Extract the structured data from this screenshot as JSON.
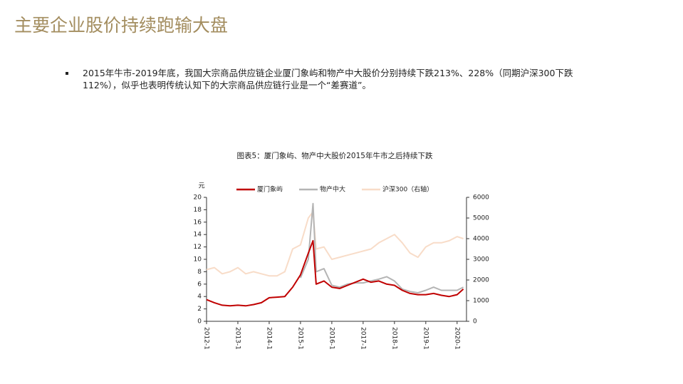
{
  "header": {
    "title": "主要企业股价持续跑输大盘"
  },
  "bullet": "2015年牛市-2019年底，我国大宗商品供应链企业厦门象屿和物产中大股价分别持续下跌213%、228%（同期沪深300下跌112%），似乎也表明传统认知下的大宗商品供应链行业是一个“差赛道”。",
  "chart_data": {
    "type": "line",
    "title": "图表5：厦门象屿、物产中大股价2015年牛市之后持续下跌",
    "y_label": "元",
    "x": [
      2012,
      2012.25,
      2012.5,
      2012.75,
      2013,
      2013.25,
      2013.5,
      2013.75,
      2014,
      2014.25,
      2014.5,
      2014.75,
      2015,
      2015.25,
      2015.4,
      2015.5,
      2015.75,
      2016,
      2016.25,
      2016.5,
      2016.75,
      2017,
      2017.25,
      2017.5,
      2017.75,
      2018,
      2018.25,
      2018.5,
      2018.75,
      2019,
      2019.25,
      2019.5,
      2019.75,
      2020,
      2020.2
    ],
    "series": [
      {
        "name": "厦门象屿",
        "color": "#c00000",
        "values": [
          3.5,
          3.0,
          2.6,
          2.5,
          2.6,
          2.5,
          2.7,
          3.0,
          3.8,
          3.9,
          4.0,
          5.5,
          7.5,
          11.0,
          13.0,
          6.0,
          6.5,
          5.5,
          5.3,
          5.8,
          6.3,
          6.8,
          6.3,
          6.5,
          6.0,
          5.8,
          5.0,
          4.5,
          4.3,
          4.3,
          4.5,
          4.2,
          4.0,
          4.3,
          5.2
        ]
      },
      {
        "name": "物产中大",
        "color": "#b4b4b4",
        "values": [
          null,
          null,
          null,
          null,
          null,
          null,
          null,
          null,
          null,
          null,
          null,
          null,
          7.0,
          10.0,
          19.0,
          8.0,
          8.5,
          5.8,
          5.5,
          6.0,
          6.2,
          6.2,
          6.5,
          6.8,
          7.2,
          6.5,
          5.2,
          4.8,
          4.6,
          5.0,
          5.5,
          5.0,
          5.0,
          5.0,
          5.5
        ]
      },
      {
        "name": "沪深300（右轴）",
        "color": "#f8dcc8",
        "axis": "y2",
        "values": [
          2500,
          2600,
          2300,
          2400,
          2600,
          2300,
          2400,
          2300,
          2200,
          2200,
          2400,
          3500,
          3700,
          5000,
          5300,
          3500,
          3600,
          3000,
          3100,
          3200,
          3300,
          3400,
          3500,
          3800,
          4000,
          4200,
          3800,
          3300,
          3100,
          3600,
          3800,
          3800,
          3900,
          4100,
          4000
        ]
      }
    ],
    "xlim": [
      2012,
      2020.3
    ],
    "xticks": [
      {
        "value": 2012,
        "label": "2012-1"
      },
      {
        "value": 2013,
        "label": "2013-1"
      },
      {
        "value": 2014,
        "label": "2014-1"
      },
      {
        "value": 2015,
        "label": "2015-1"
      },
      {
        "value": 2016,
        "label": "2016-1"
      },
      {
        "value": 2017,
        "label": "2017-1"
      },
      {
        "value": 2018,
        "label": "2018-1"
      },
      {
        "value": 2019,
        "label": "2019-1"
      },
      {
        "value": 2020,
        "label": "2020-1"
      }
    ],
    "ylim": [
      0,
      20
    ],
    "yticks": [
      0,
      2,
      4,
      6,
      8,
      10,
      12,
      14,
      16,
      18,
      20
    ],
    "y2lim": [
      0,
      6000
    ],
    "y2ticks": [
      0,
      1000,
      2000,
      3000,
      4000,
      5000,
      6000
    ],
    "grid": false
  }
}
